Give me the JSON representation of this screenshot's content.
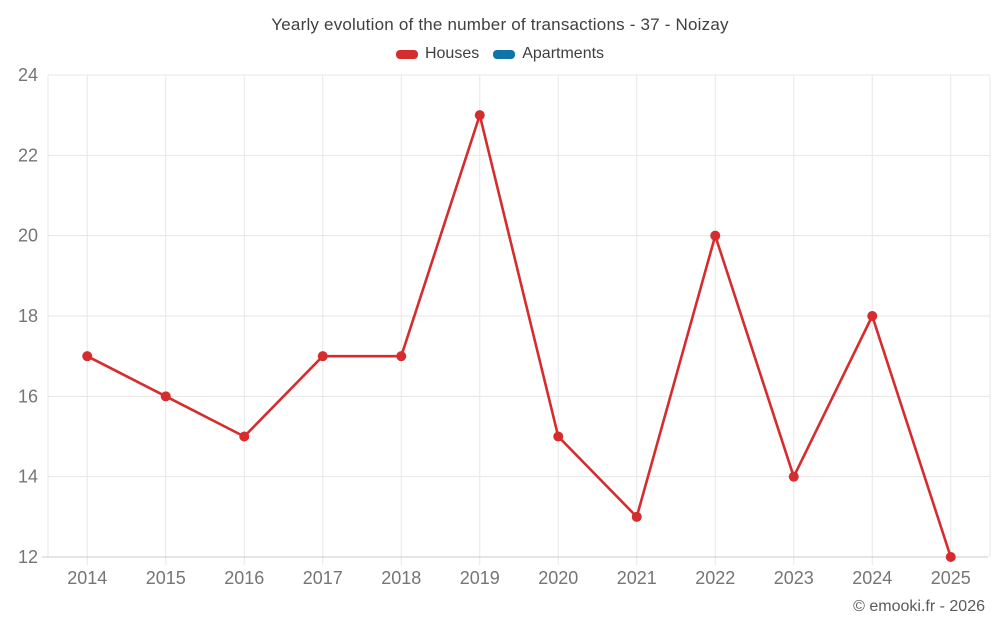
{
  "page": {
    "copyright": "© emooki.fr - 2026"
  },
  "colors": {
    "houses": "#d62c2e",
    "apartments": "#0f74a8",
    "grid": "#e7e7e7",
    "axis_line": "#cbcbcb",
    "title_text": "#404040",
    "axis_text": "#757575",
    "copyright_text": "#595959",
    "background": "#ffffff"
  },
  "chart_data": {
    "type": "line",
    "title": "Yearly evolution of the number of transactions - 37 - Noizay",
    "categories": [
      "2014",
      "2015",
      "2016",
      "2017",
      "2018",
      "2019",
      "2020",
      "2021",
      "2022",
      "2023",
      "2024",
      "2025"
    ],
    "series": [
      {
        "name": "Houses",
        "color": "#d62c2e",
        "values": [
          17,
          16,
          15,
          17,
          17,
          23,
          15,
          13,
          20,
          14,
          18,
          12
        ]
      },
      {
        "name": "Apartments",
        "color": "#0f74a8",
        "values": []
      }
    ],
    "xlabel": "",
    "ylabel": "",
    "ylim": [
      12,
      24
    ],
    "y_ticks": [
      12,
      14,
      16,
      18,
      20,
      22,
      24
    ],
    "grid": true,
    "legend_position": "top",
    "marker": "circle"
  }
}
